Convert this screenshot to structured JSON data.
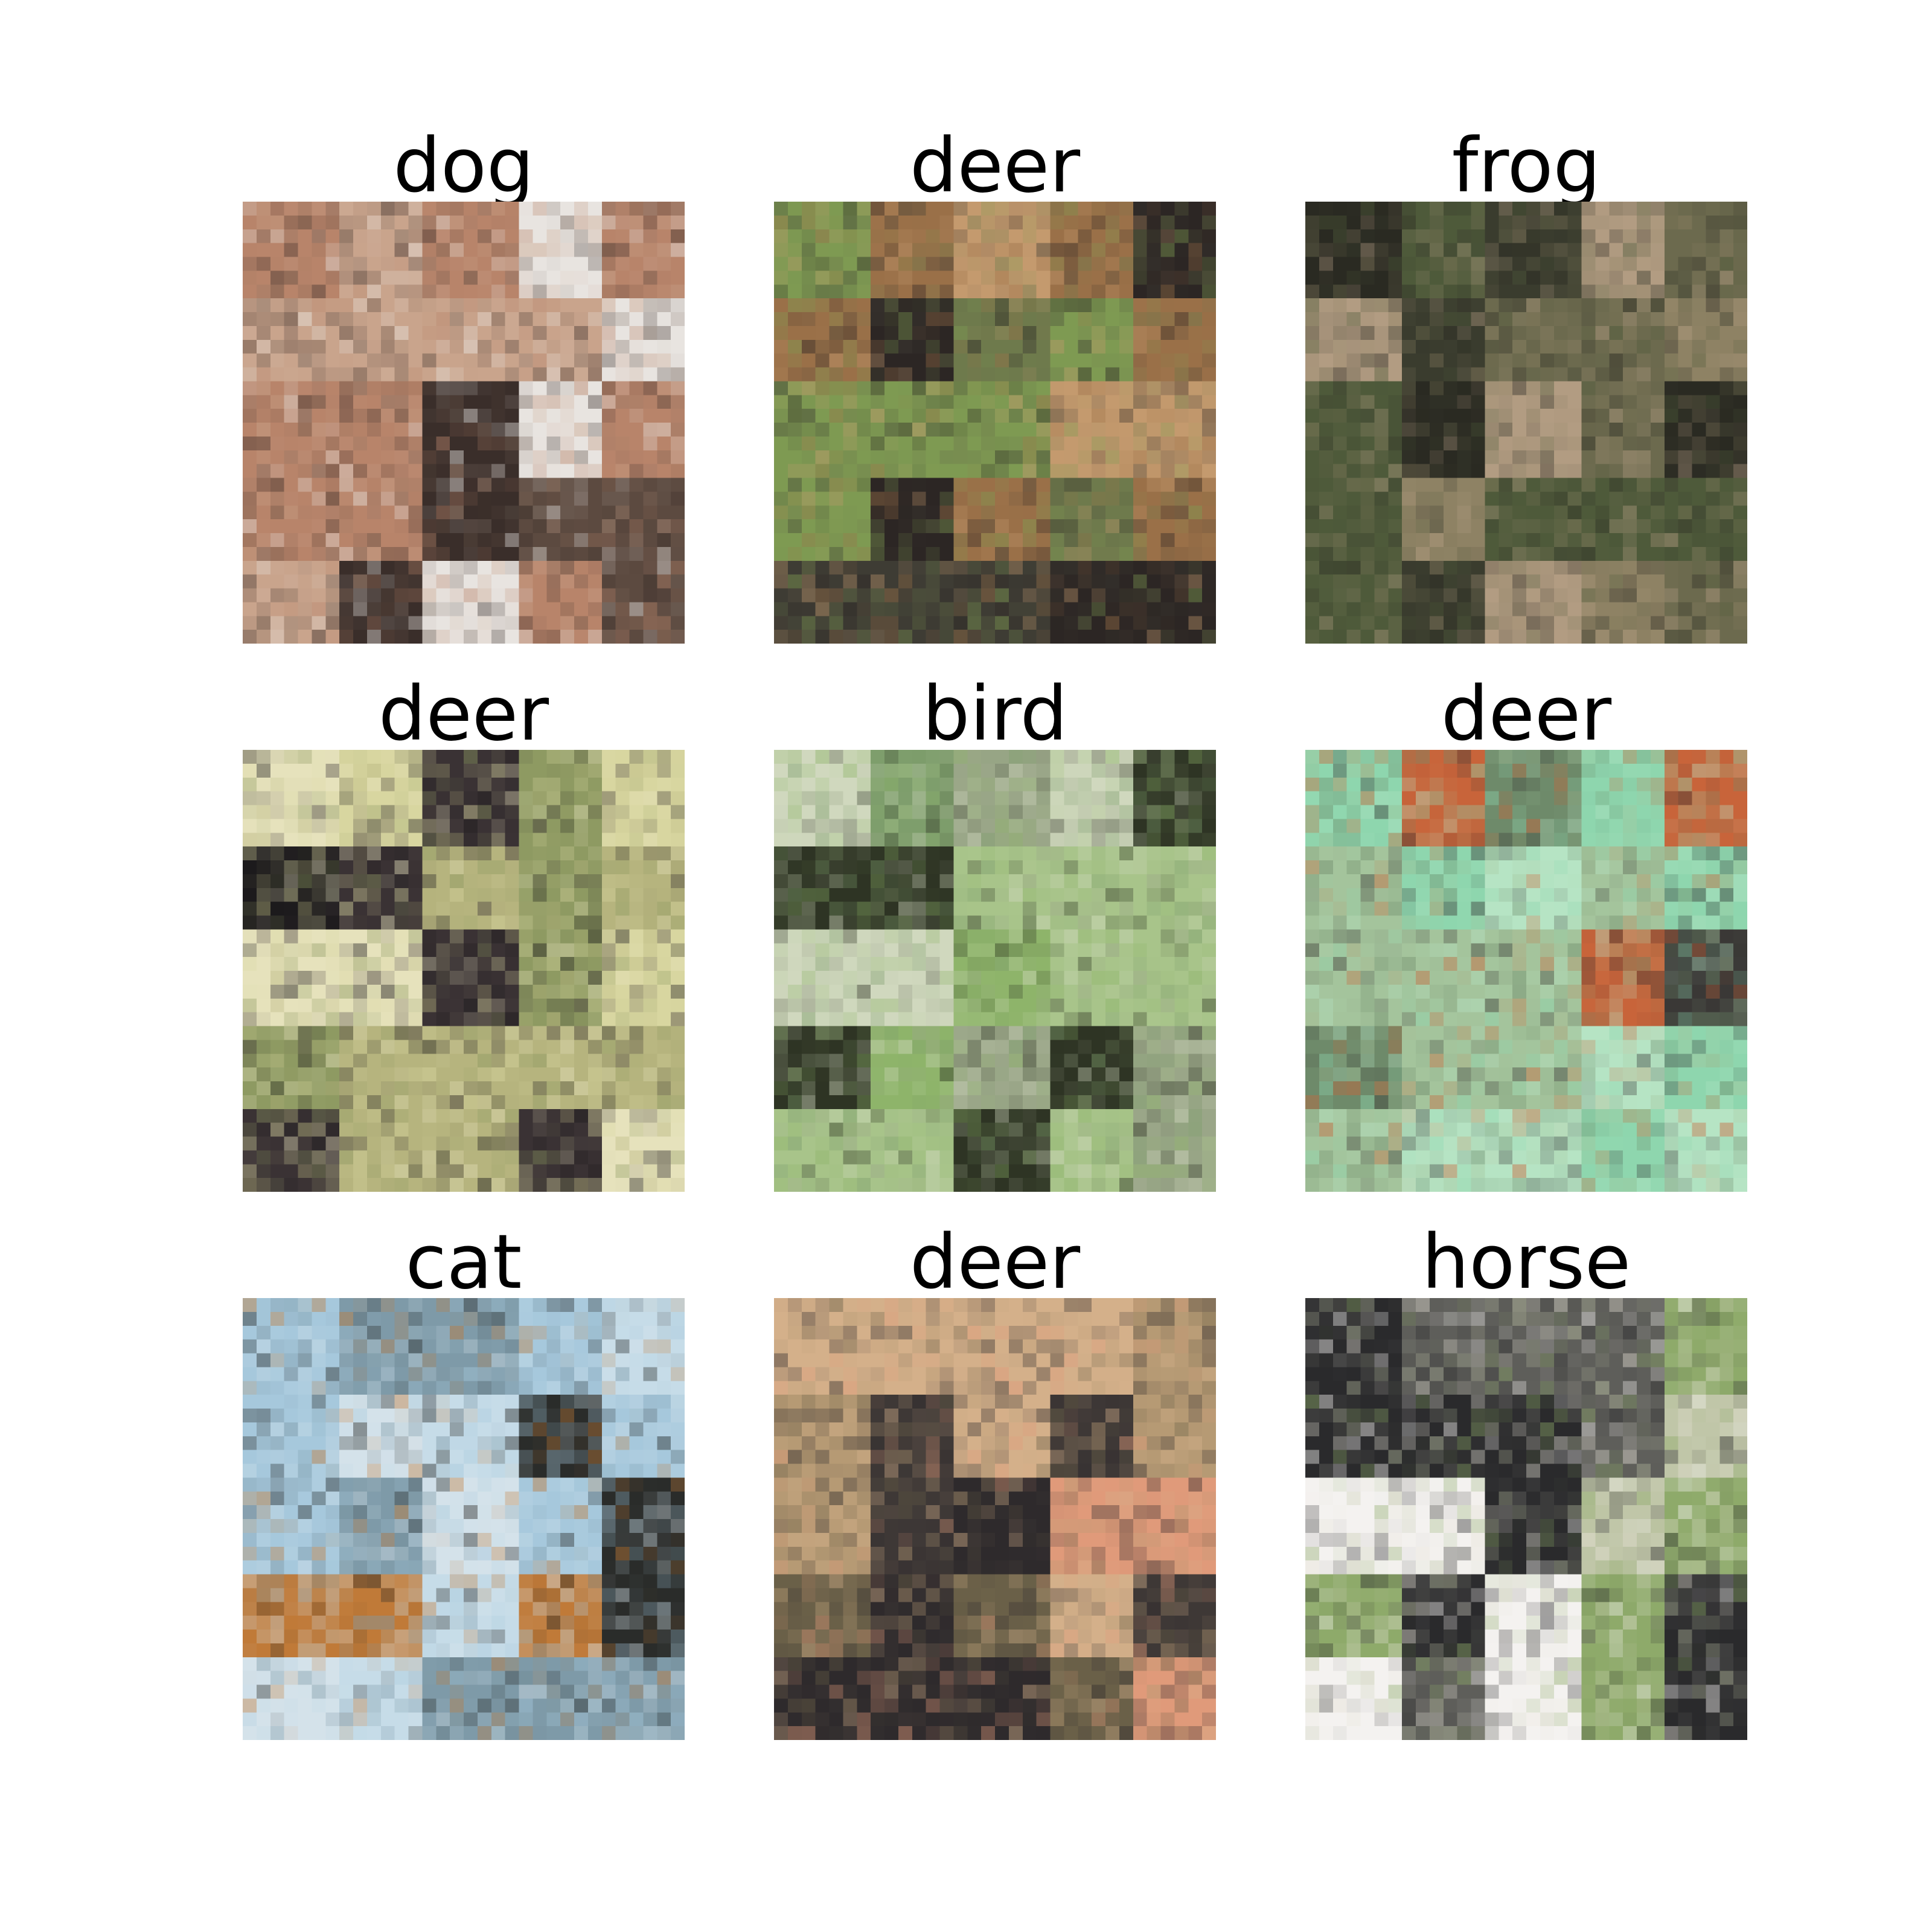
{
  "grid": {
    "rows": 3,
    "cols": 3
  },
  "panels": [
    {
      "label": "dog",
      "palette": [
        "#3a2e2a",
        "#c9a48c",
        "#e8e4e0",
        "#7a6a60",
        "#b8846a",
        "#5c4a40"
      ]
    },
    {
      "label": "deer",
      "palette": [
        "#3e3c34",
        "#6e7a4c",
        "#9a7048",
        "#2c2624",
        "#7e9a52",
        "#c49a6e"
      ]
    },
    {
      "label": "frog",
      "palette": [
        "#3a3c2e",
        "#6c6a4e",
        "#8e8264",
        "#b29c82",
        "#4e5a3a",
        "#2a2a22"
      ]
    },
    {
      "label": "deer",
      "palette": [
        "#d8d6a0",
        "#b6b47e",
        "#3a3234",
        "#1c1a1c",
        "#8e9a62",
        "#e6e2bc"
      ]
    },
    {
      "label": "bird",
      "palette": [
        "#8eb46a",
        "#a8c48a",
        "#7e9e6c",
        "#9aa688",
        "#2e3424",
        "#d0d8be"
      ]
    },
    {
      "label": "deer",
      "palette": [
        "#8ed6ae",
        "#b6e4c4",
        "#3a3836",
        "#c8643a",
        "#6e8a6a",
        "#a4c49c"
      ]
    },
    {
      "label": "cat",
      "palette": [
        "#a6c8dc",
        "#c6dce8",
        "#2a2c2a",
        "#d4e2ea",
        "#c07a38",
        "#7e9aa8"
      ]
    },
    {
      "label": "deer",
      "palette": [
        "#b69a74",
        "#d4b08a",
        "#2e2a2c",
        "#e09a7a",
        "#6a6048",
        "#3e3836"
      ]
    },
    {
      "label": "horse",
      "palette": [
        "#f4f2f0",
        "#2a2a2c",
        "#5e5e5a",
        "#e6e2d6",
        "#8eaa6a",
        "#c0c6a8"
      ]
    }
  ]
}
